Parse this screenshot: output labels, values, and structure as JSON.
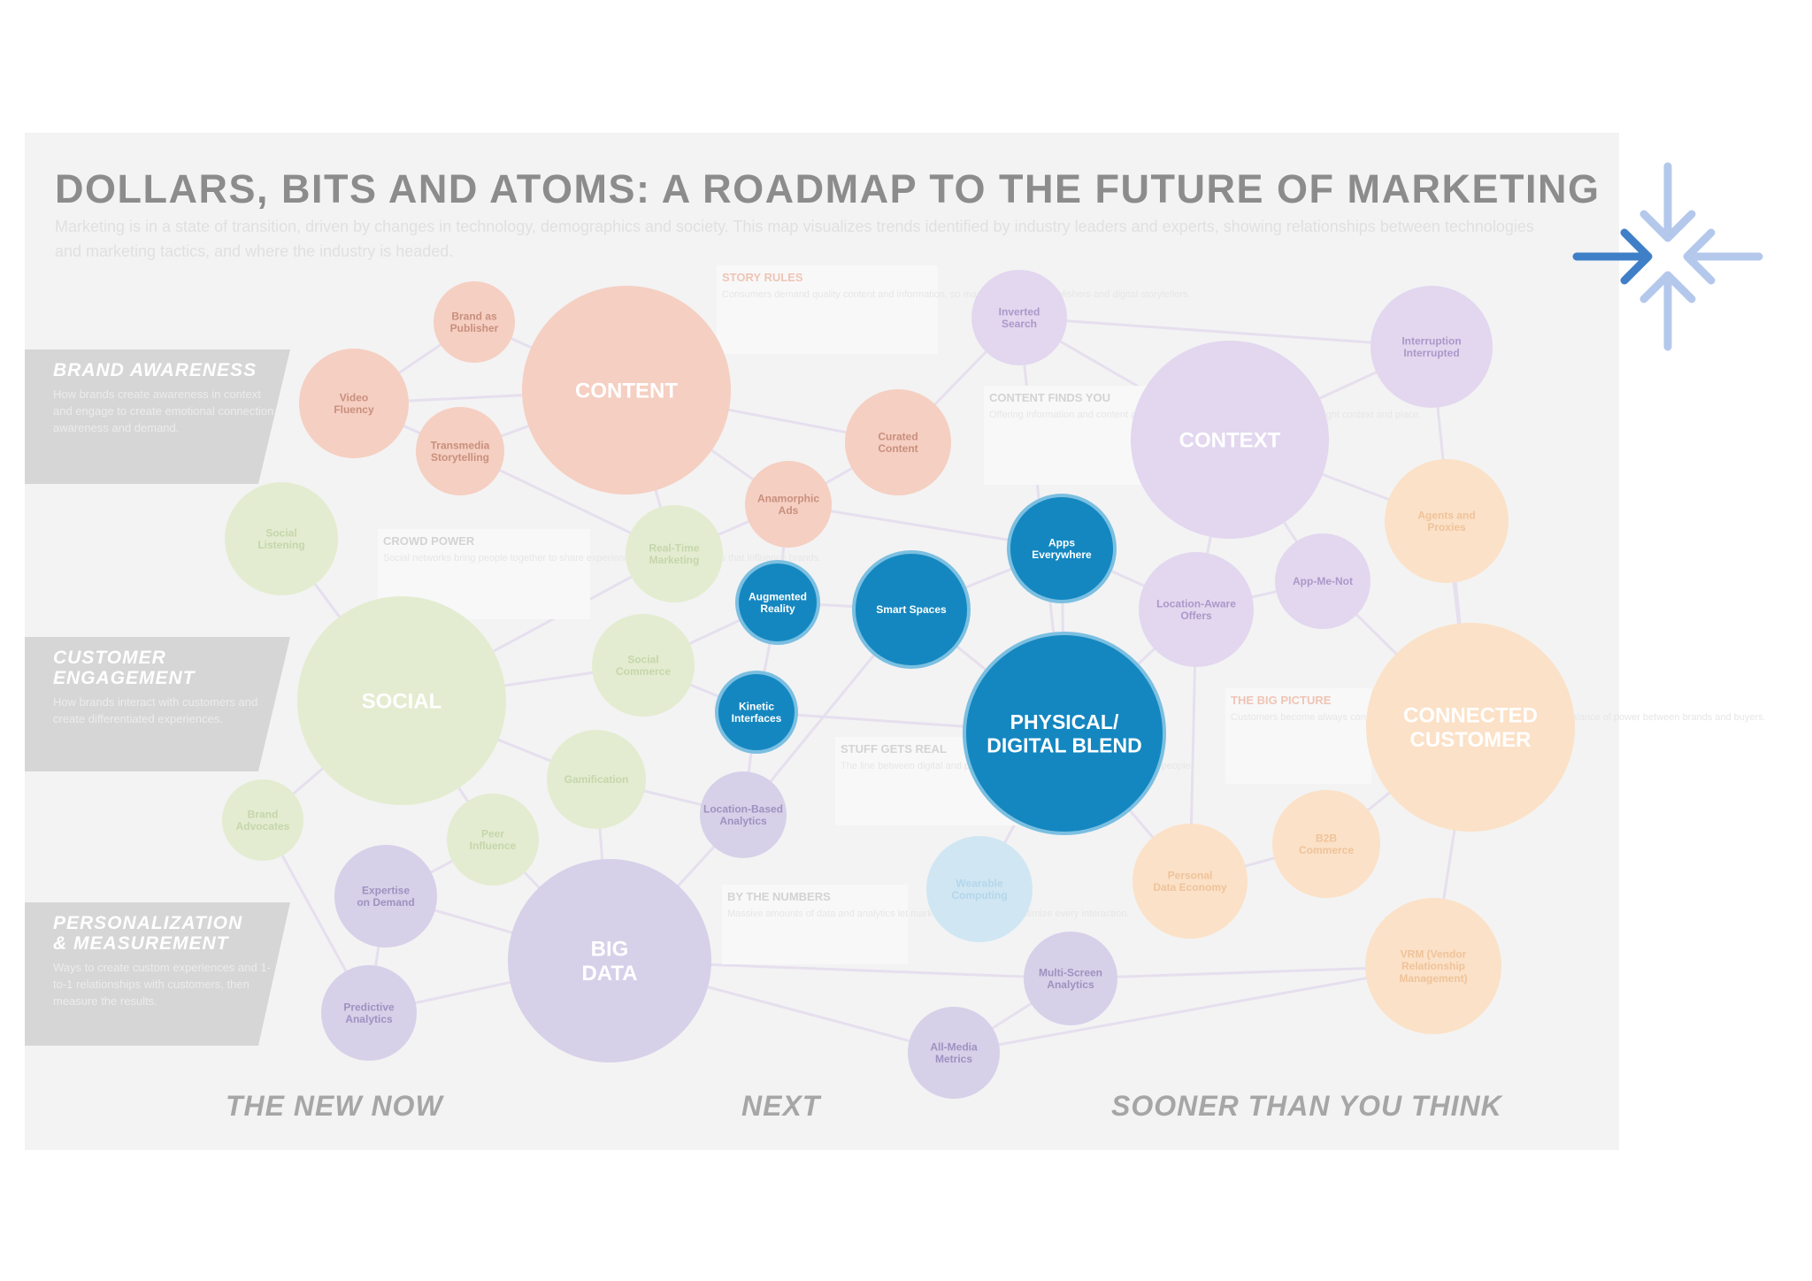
{
  "title": "DOLLARS, BITS AND ATOMS: A ROADMAP TO THE FUTURE OF MARKETING",
  "intro": "Marketing is in a state of transition, driven by changes in technology, demographics and society. This map visualizes trends identified by industry leaders and experts, showing relationships between technologies and marketing tactics, and where the industry is headed.",
  "bands": [
    {
      "title": "BRAND AWARENESS",
      "desc": "How brands create awareness in context and engage to create emotional connection, awareness and demand."
    },
    {
      "title": "CUSTOMER\nENGAGEMENT",
      "desc": "How brands interact with customers and create differentiated experiences."
    },
    {
      "title": "PERSONALIZATION\n& MEASUREMENT",
      "desc": "Ways to create custom experiences and 1-to-1 relationships with customers, then measure the results."
    }
  ],
  "columns": [
    {
      "label": "THE NEW NOW"
    },
    {
      "label": "NEXT"
    },
    {
      "label": "SOONER THAN YOU THINK"
    }
  ],
  "colors": {
    "content": "#f5cfc2",
    "content_text": "#c98f7d",
    "social": "#e3ecd0",
    "social_text": "#c6d6ac",
    "data": "#d7d0e9",
    "data_text": "#9d92c0",
    "context": "#e2d7ef",
    "context_text": "#ab98c9",
    "customer": "#fbe1c7",
    "customer_text": "#efc39a",
    "physical": "#1487c0",
    "physical_edge": "#7bbfe1",
    "light_blue": "#d0e6f3",
    "edge": "#e6dfee"
  },
  "nodes": [
    {
      "id": "content",
      "label": "CONTENT",
      "group": "content",
      "major": true
    },
    {
      "id": "brand-pub",
      "label": "Brand as Publisher",
      "group": "content"
    },
    {
      "id": "video",
      "label": "Video Fluency",
      "group": "content"
    },
    {
      "id": "transmedia",
      "label": "Transmedia Storytelling",
      "group": "content"
    },
    {
      "id": "curated",
      "label": "Curated Content",
      "group": "content"
    },
    {
      "id": "anamorphic",
      "label": "Anamorphic Ads",
      "group": "content"
    },
    {
      "id": "social",
      "label": "SOCIAL",
      "group": "social",
      "major": true
    },
    {
      "id": "s1",
      "label": "Social Listening",
      "group": "social"
    },
    {
      "id": "s2",
      "label": "Real-Time Marketing",
      "group": "social"
    },
    {
      "id": "s3",
      "label": "Social Commerce",
      "group": "social"
    },
    {
      "id": "s4",
      "label": "Gamification",
      "group": "social"
    },
    {
      "id": "s5",
      "label": "Peer Influence",
      "group": "social"
    },
    {
      "id": "s6",
      "label": "Brand Advocates",
      "group": "social"
    },
    {
      "id": "context",
      "label": "CONTEXT",
      "group": "context",
      "major": true
    },
    {
      "id": "inverted",
      "label": "Inverted Search",
      "group": "context"
    },
    {
      "id": "interruption",
      "label": "Interruption Interrupted",
      "group": "context"
    },
    {
      "id": "location-aware",
      "label": "Location-Aware Offers",
      "group": "context"
    },
    {
      "id": "app-me-not",
      "label": "App-Me-Not",
      "group": "context"
    },
    {
      "id": "bigdata",
      "label": "BIG DATA",
      "group": "data",
      "major": true
    },
    {
      "id": "expertise",
      "label": "Expertise on Demand",
      "group": "data"
    },
    {
      "id": "predictive",
      "label": "Predictive Analytics",
      "group": "data"
    },
    {
      "id": "location-based",
      "label": "Location-Based Analytics",
      "group": "data"
    },
    {
      "id": "multiscreen",
      "label": "Multi-Screen Analytics",
      "group": "data"
    },
    {
      "id": "allmedia",
      "label": "All-Media Metrics",
      "group": "data"
    },
    {
      "id": "physical",
      "label": "PHYSICAL/ DIGITAL BLEND",
      "group": "physical",
      "major": true
    },
    {
      "id": "apps",
      "label": "Apps Everywhere",
      "group": "physical"
    },
    {
      "id": "smart",
      "label": "Smart Spaces",
      "group": "physical"
    },
    {
      "id": "augmented",
      "label": "Augmented Reality",
      "group": "physical"
    },
    {
      "id": "kinetic",
      "label": "Kinetic Interfaces",
      "group": "physical"
    },
    {
      "id": "wearable",
      "label": "Wearable Computing",
      "group": "light_blue"
    },
    {
      "id": "customer",
      "label": "CONNECTED CUSTOMER",
      "group": "customer",
      "major": true
    },
    {
      "id": "c1",
      "label": "Agents and Proxies",
      "group": "customer"
    },
    {
      "id": "c2",
      "label": "Personal Data Economy",
      "group": "customer"
    },
    {
      "id": "c3",
      "label": "B2B Commerce",
      "group": "customer"
    },
    {
      "id": "c4",
      "label": "VRM (Vendor Relationship Management)",
      "group": "customer"
    }
  ],
  "callouts": [
    {
      "title": "STORY RULES",
      "text": "Consumers demand quality content and information, so marketers become publishers and digital storytellers."
    },
    {
      "title": "CONTENT FINDS YOU",
      "text": "Offering information and content at the moment the customer needs it, in the right context and place."
    },
    {
      "title": "CROWD POWER",
      "text": "Social networks bring people together to share experiences, opinions and ideas that influence brands."
    },
    {
      "title": "STUFF GETS REAL",
      "text": "The line between digital and physical worlds blurs as technology connects people."
    },
    {
      "title": "BY THE NUMBERS",
      "text": "Massive amounts of data and analytics let marketers measure and optimize every interaction."
    },
    {
      "title": "THE BIG PICTURE",
      "text": "Customers become always connected, informed and empowered, shifting the balance of power between brands and buyers."
    }
  ],
  "logo": {
    "name": "arrows-converge-logo",
    "color_dark": "#3f7fc7",
    "color_light": "#b4c8ec"
  }
}
